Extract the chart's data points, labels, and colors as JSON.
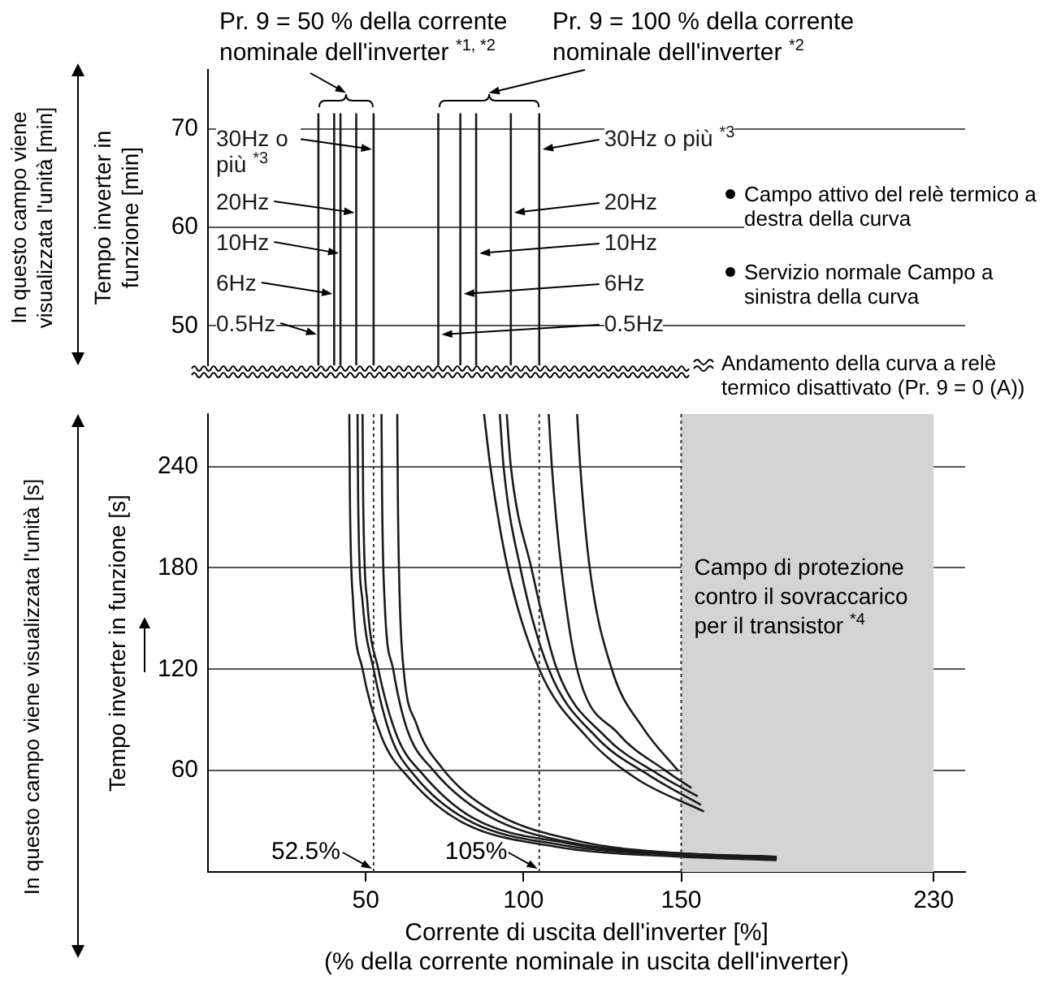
{
  "chart_data": [
    {
      "type": "line",
      "xlim": [
        0,
        240
      ],
      "ylim": [
        46,
        76
      ],
      "yticks": [
        50,
        60,
        70
      ],
      "tick_labels": "y",
      "grid": "y",
      "ylabel": "Tempo inverter in funzione [min]",
      "annotations": [
        "Pr. 9 = 50 % della corrente nominale dell'inverter $^{*1, *2}$",
        "Pr. 9 = 100 % della corrente nominale dell'inverter $^{*2}$",
        "In questo campo viene visualizzata l'unità [min]",
        "Campo attivo del relè termico a destra della curva",
        "Servizio normale Campo a sinistra della curva",
        "Andamento della curva a relè termico disattivato (Pr. 9 = 0 (A))"
      ],
      "series": [
        {
          "name": "0.5Hz",
          "color": "#1a1a1a",
          "x": [
            35,
            35
          ],
          "values": [
            46,
            71.5
          ]
        },
        {
          "name": "6Hz",
          "color": "#1a1a1a",
          "x": [
            40,
            40
          ],
          "values": [
            46,
            71.5
          ]
        },
        {
          "name": "10Hz",
          "color": "#1a1a1a",
          "x": [
            42,
            42
          ],
          "values": [
            46,
            71.5
          ]
        },
        {
          "name": "20Hz",
          "color": "#1a1a1a",
          "x": [
            47,
            47
          ],
          "values": [
            46,
            71.5
          ]
        },
        {
          "name": "30Hz o più $^{*3}$",
          "color": "#1a1a1a",
          "x": [
            52.5,
            52.5
          ],
          "values": [
            46,
            71.5
          ]
        },
        {
          "name": "0.5Hz",
          "color": "#1a1a1a",
          "x": [
            73,
            73
          ],
          "values": [
            46,
            71.5
          ]
        },
        {
          "name": "6Hz",
          "color": "#1a1a1a",
          "x": [
            80,
            80
          ],
          "values": [
            46,
            71.5
          ]
        },
        {
          "name": "10Hz",
          "color": "#1a1a1a",
          "x": [
            85,
            85
          ],
          "values": [
            46,
            71.5
          ]
        },
        {
          "name": "20Hz",
          "color": "#1a1a1a",
          "x": [
            96,
            96
          ],
          "values": [
            46,
            71.5
          ]
        },
        {
          "name": "30Hz o più $^{*3}$",
          "color": "#1a1a1a",
          "x": [
            105,
            105
          ],
          "values": [
            46,
            71.5
          ]
        }
      ]
    },
    {
      "type": "line",
      "xlim": [
        0,
        240
      ],
      "xticks": [
        50,
        100,
        150,
        230
      ],
      "ylim": [
        0,
        271
      ],
      "yticks": [
        60,
        120,
        180,
        240
      ],
      "grid": "y",
      "xlabel": "Corrente di uscita dell'inverter [%]",
      "ylabel": "Tempo inverter in funzione [s]",
      "annotations": [
        "(% della corrente nominale in uscita dell'inverter)",
        "In questo campo viene visualizzata l'unità [s]"
      ],
      "ref_lines": [
        {
          "axis": "x",
          "value": 52.5,
          "label": "52.5%",
          "line_style": "dotted",
          "color": "#333333"
        },
        {
          "axis": "x",
          "value": 105,
          "label": "105%",
          "line_style": "dotted",
          "color": "#333333"
        },
        {
          "axis": "x",
          "value": 150,
          "line_style": "dotted",
          "color": "#333333"
        }
      ],
      "bands": [
        {
          "axis": "x",
          "from": 150,
          "to": 230,
          "label": "Campo di protezione contro il sovraccarico per il transistor $^{*4}$",
          "color": "#d4d4d4"
        }
      ],
      "series": [
        {
          "color": "#1a1a1a",
          "x": [
            44.8,
            45,
            46,
            49,
            55,
            64,
            80,
            110,
            150,
            180
          ],
          "values": [
            271,
            220,
            160,
            120,
            80,
            55,
            30,
            15,
            9,
            7
          ]
        },
        {
          "color": "#1a1a1a",
          "x": [
            47.4,
            47.6,
            49,
            52.5,
            58,
            65.5,
            82,
            112,
            150,
            180
          ],
          "values": [
            271,
            220,
            160,
            120,
            80,
            57,
            31,
            16,
            10,
            8
          ]
        },
        {
          "color": "#1a1a1a",
          "x": [
            49,
            49.2,
            50.5,
            54,
            60,
            68,
            84,
            114,
            150,
            180
          ],
          "values": [
            271,
            220,
            160,
            120,
            80,
            58,
            32,
            17,
            10,
            8
          ]
        },
        {
          "color": "#1a1a1a",
          "x": [
            55,
            55.2,
            56,
            58.7,
            63,
            71.5,
            88,
            116,
            150,
            180
          ],
          "values": [
            271,
            220,
            160,
            120,
            85,
            60,
            34,
            17,
            11,
            9
          ]
        },
        {
          "color": "#1a1a1a",
          "x": [
            60,
            60.2,
            60.8,
            62,
            66,
            74,
            90,
            118,
            150,
            180
          ],
          "values": [
            271,
            220,
            160,
            120,
            88,
            62,
            36,
            18,
            11,
            9
          ]
        },
        {
          "color": "#1a1a1a",
          "x": [
            87.5,
            89.5,
            95,
            105,
            120,
            136,
            157
          ],
          "values": [
            271,
            240,
            180,
            120,
            80,
            55,
            36
          ]
        },
        {
          "color": "#1a1a1a",
          "x": [
            92.5,
            93.7,
            99,
            108,
            123,
            140,
            156
          ],
          "values": [
            271,
            240,
            180,
            120,
            80,
            57,
            40
          ]
        },
        {
          "color": "#1a1a1a",
          "x": [
            94.7,
            96,
            102.5,
            110.6,
            126,
            142.6,
            155
          ],
          "values": [
            271,
            240,
            180,
            120,
            80,
            58,
            45
          ]
        },
        {
          "color": "#1a1a1a",
          "x": [
            108,
            109,
            112,
            117,
            130,
            145,
            153
          ],
          "values": [
            271,
            240,
            180,
            120,
            82,
            60,
            50
          ]
        },
        {
          "color": "#1a1a1a",
          "x": [
            117,
            118,
            121,
            128,
            138,
            149
          ],
          "values": [
            271,
            240,
            180,
            120,
            85,
            60
          ]
        }
      ]
    }
  ]
}
